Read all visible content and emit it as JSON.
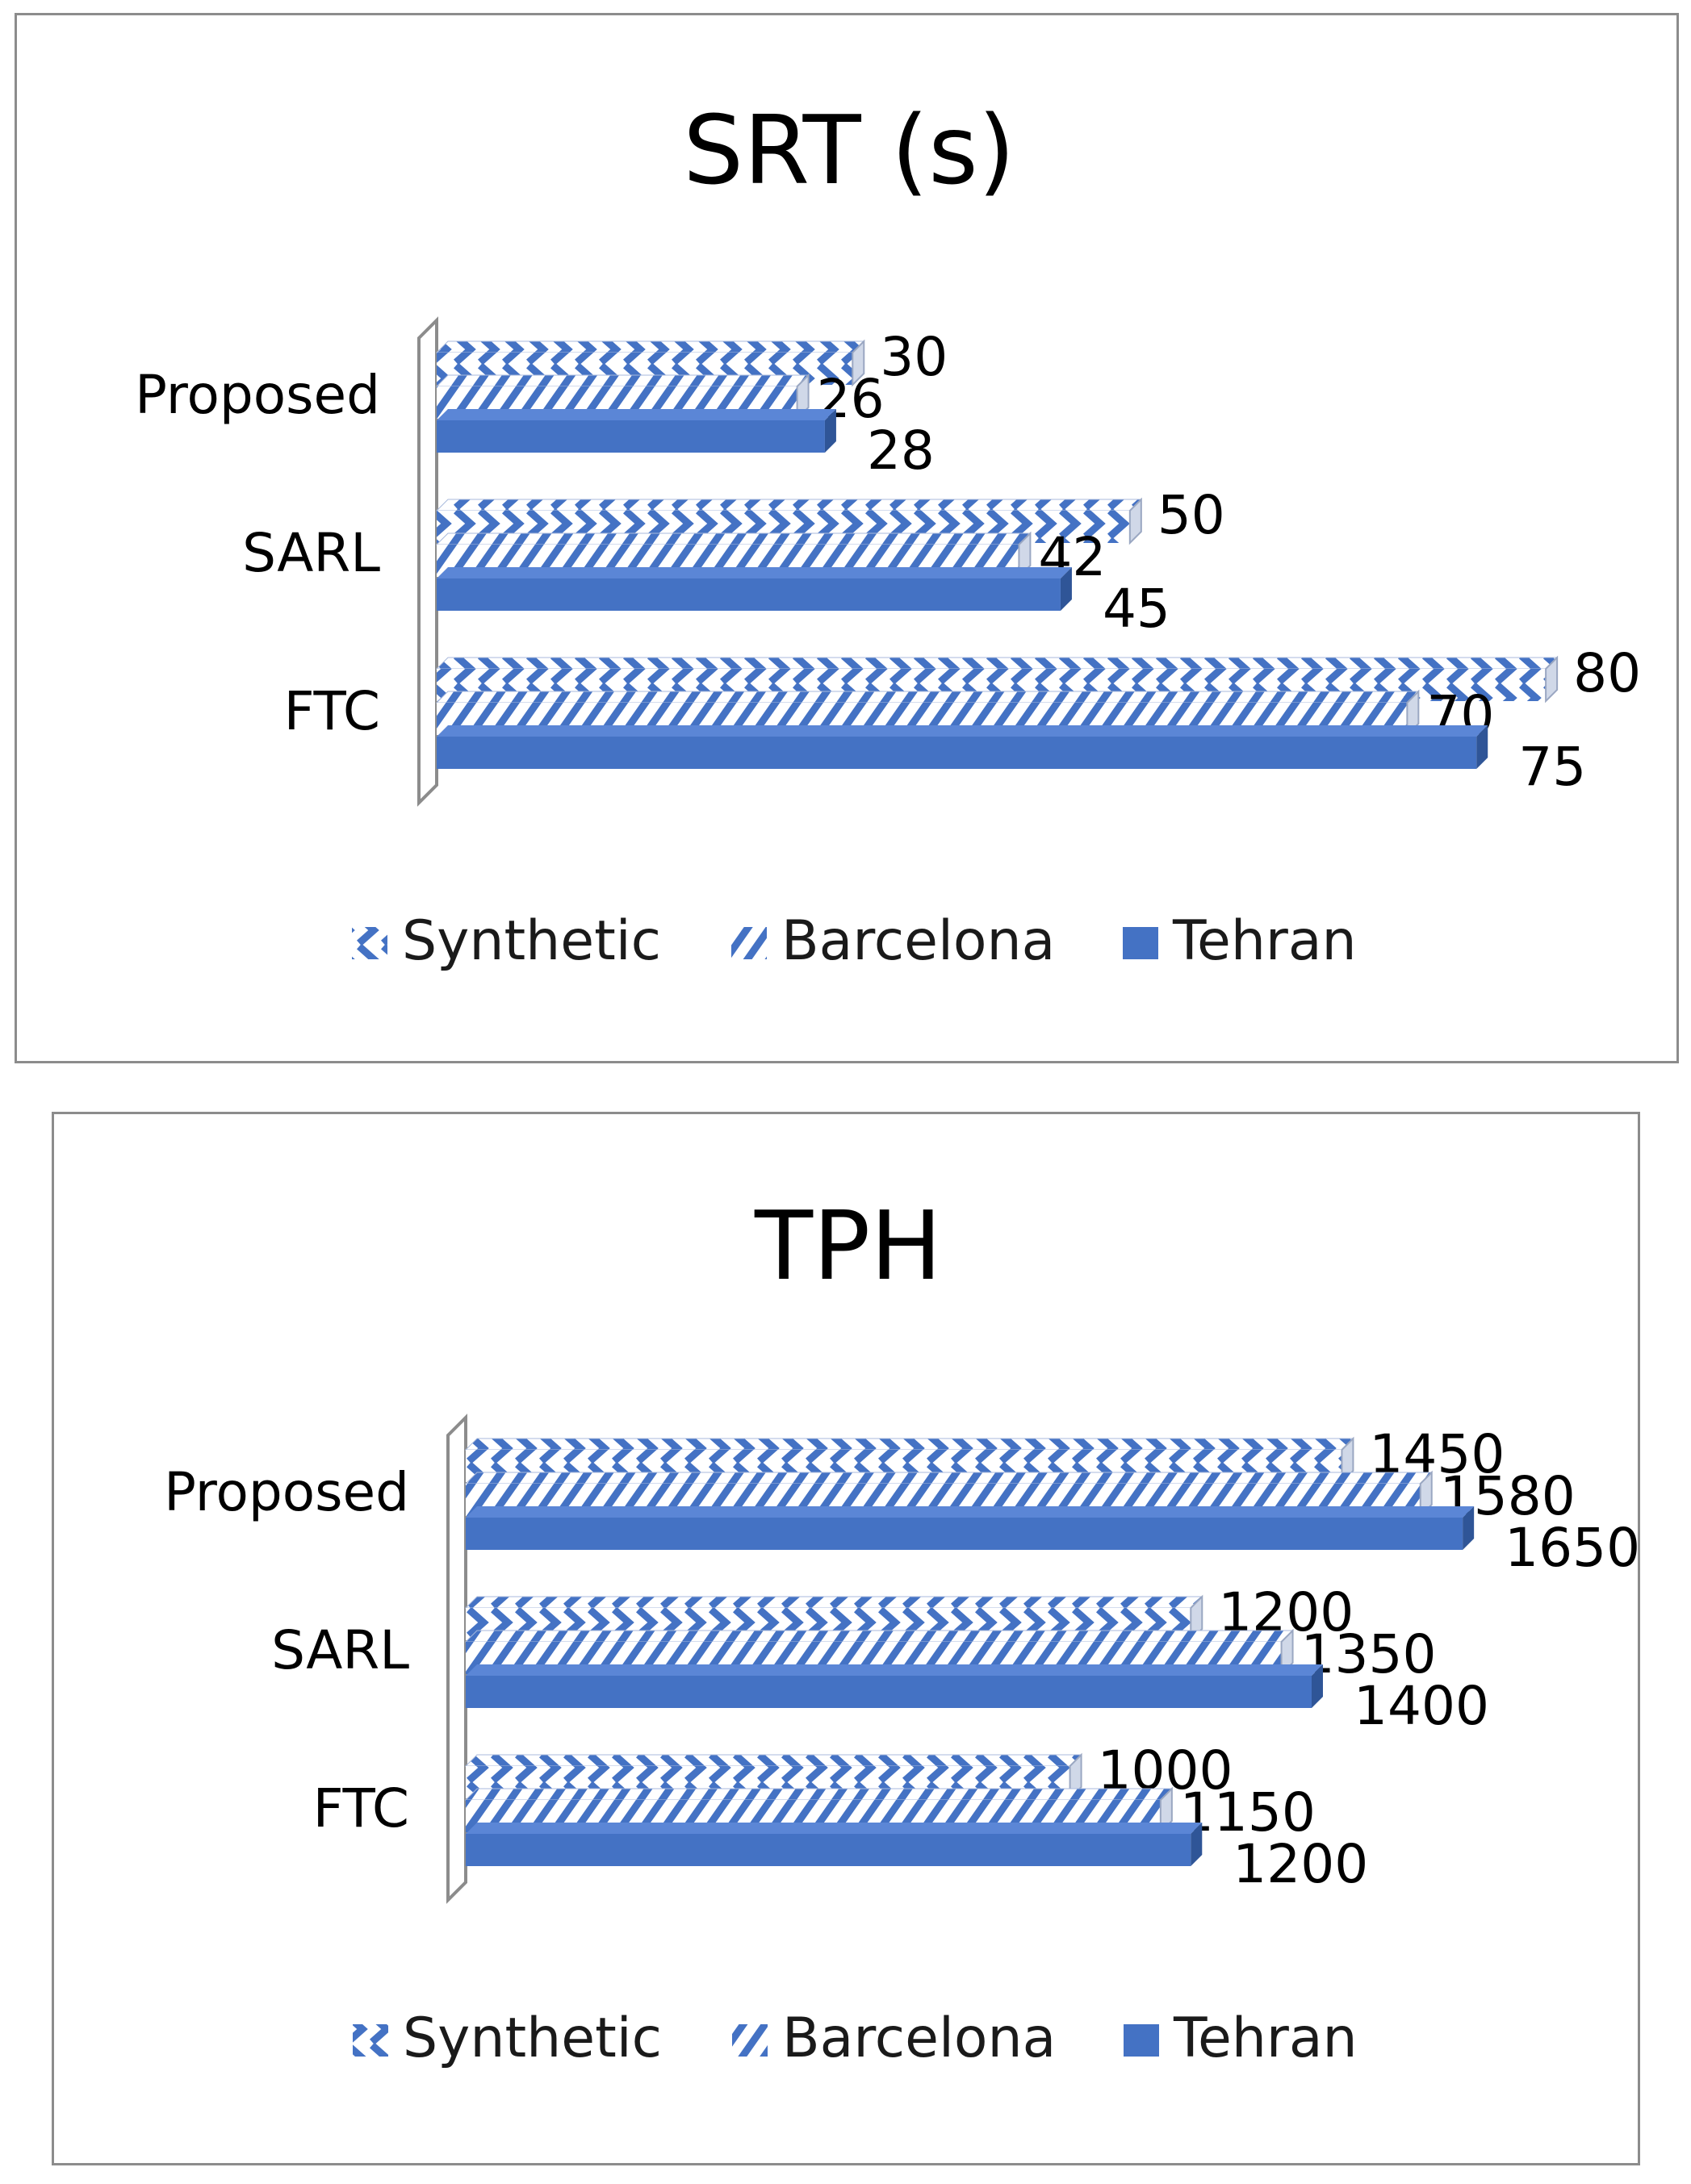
{
  "colors": {
    "accent": "#4472c4",
    "accent_dark": "#2f5597",
    "panel_border": "#8c8c8c"
  },
  "chart_data": [
    {
      "type": "bar",
      "orientation": "horizontal",
      "title": "SRT (s)",
      "categories": [
        "Proposed",
        "SARL",
        "FTC"
      ],
      "series": [
        {
          "name": "Synthetic",
          "values": [
            30,
            50,
            80
          ]
        },
        {
          "name": "Barcelona",
          "values": [
            26,
            42,
            70
          ]
        },
        {
          "name": "Tehran",
          "values": [
            28,
            45,
            75
          ]
        }
      ],
      "xlim": [
        0,
        85
      ],
      "grid": false,
      "legend": "bottom"
    },
    {
      "type": "bar",
      "orientation": "horizontal",
      "title": "TPH",
      "categories": [
        "Proposed",
        "SARL",
        "FTC"
      ],
      "series": [
        {
          "name": "Synthetic",
          "values": [
            1450,
            1200,
            1000
          ]
        },
        {
          "name": "Barcelona",
          "values": [
            1580,
            1350,
            1150
          ]
        },
        {
          "name": "Tehran",
          "values": [
            1650,
            1400,
            1200
          ]
        }
      ],
      "xlim": [
        0,
        1750
      ],
      "grid": false,
      "legend": "bottom"
    }
  ]
}
